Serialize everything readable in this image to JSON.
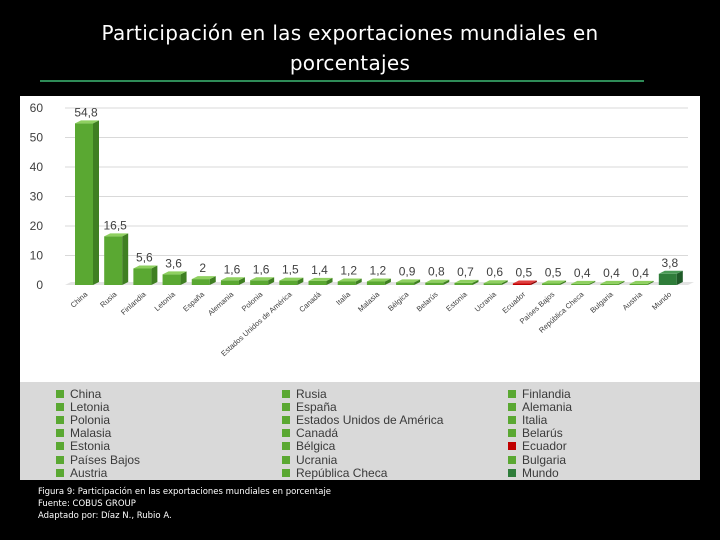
{
  "slide": {
    "title_line1": "Participación en las exportaciones mundiales en",
    "title_line2": "porcentajes"
  },
  "caption": {
    "figure": "Figura 9: Participación en las exportaciones mundiales en porcentaje",
    "source": "Fuente: COBUS GROUP",
    "adapted": "Adaptado por: Díaz N., Rubio A."
  },
  "colors": {
    "bar_green": "#5aa832",
    "bar_green_dark": "#3f7f22",
    "bar_green_top": "#8fd060",
    "highlight_red": "#c00000",
    "mundo_green": "#2f7d3a",
    "grid": "#d9d9d9"
  },
  "chart_data": {
    "type": "bar",
    "title": "",
    "xlabel": "",
    "ylabel": "",
    "ylim": [
      0,
      60
    ],
    "yticks": [
      0,
      10,
      20,
      30,
      40,
      50,
      60
    ],
    "grid": true,
    "legend_position": "bottom",
    "categories": [
      "China",
      "Rusia",
      "Finlandia",
      "Letonia",
      "España",
      "Alemania",
      "Polonia",
      "Estados Unidos de América",
      "Canadá",
      "Italia",
      "Malasia",
      "Bélgica",
      "Belarús",
      "Estonia",
      "Ucrania",
      "Ecuador",
      "Países Bajos",
      "República Checa",
      "Bulgaria",
      "Austria",
      "Mundo"
    ],
    "tick_labels": [
      "China",
      "Rusia",
      "Finlandia",
      "Letonia",
      "España",
      "Alemania",
      "Polonia",
      "Estados Unidos de América",
      "Canadá",
      "Italia",
      "Malasia",
      "Bélgica",
      "Belarús",
      "Estonia",
      "Ucrania",
      "Ecuador",
      "Países Bajos",
      "República Checa",
      "Bulgaria",
      "Austria",
      "Mundo"
    ],
    "values": [
      54.8,
      16.5,
      5.6,
      3.6,
      2,
      1.6,
      1.6,
      1.5,
      1.4,
      1.2,
      1.2,
      0.9,
      0.8,
      0.7,
      0.6,
      0.5,
      0.5,
      0.4,
      0.4,
      0.4,
      3.8
    ],
    "data_labels": [
      "54,8",
      "16,5",
      "5,6",
      "3,6",
      "2",
      "1,6",
      "1,6",
      "1,5",
      "1,4",
      "1,2",
      "1,2",
      "0,9",
      "0,8",
      "0,7",
      "0,6",
      "0,5",
      "0,5",
      "0,4",
      "0,4",
      "0,4",
      "3,8"
    ],
    "highlight": "Ecuador",
    "legend_entries": [
      "China",
      "Rusia",
      "Finlandia",
      "Letonia",
      "España",
      "Alemania",
      "Polonia",
      "Estados Unidos de América",
      "Italia",
      "Malasia",
      "Canadá",
      "Belarús",
      "Estonia",
      "Bélgica",
      "Ecuador",
      "Países Bajos",
      "Ucrania",
      "Bulgaria",
      "Austria",
      "República Checa",
      "Mundo"
    ]
  }
}
